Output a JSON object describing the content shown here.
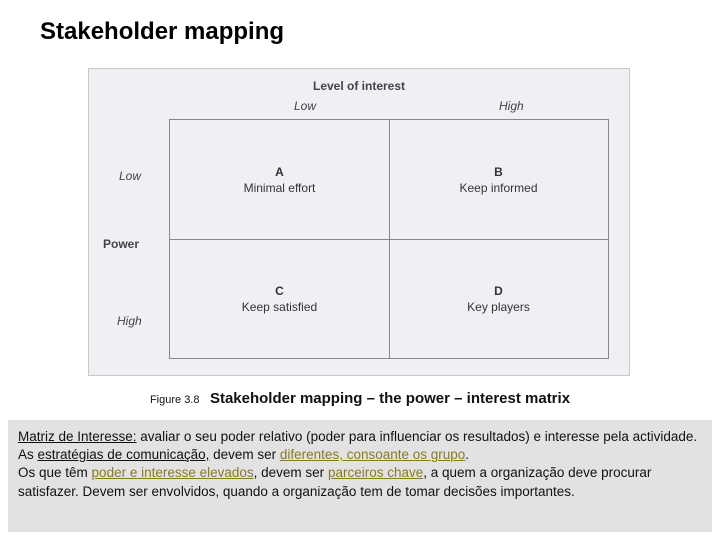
{
  "title": "Stakeholder mapping",
  "figure": {
    "top_axis_title": "Level of interest",
    "left_axis_title": "Power",
    "col_labels": {
      "low": "Low",
      "high": "High"
    },
    "row_labels": {
      "low": "Low",
      "high": "High"
    },
    "quadrants": {
      "A": {
        "letter": "A",
        "label": "Minimal effort"
      },
      "B": {
        "letter": "B",
        "label": "Keep informed"
      },
      "C": {
        "letter": "C",
        "label": "Keep satisfied"
      },
      "D": {
        "letter": "D",
        "label": "Key players"
      }
    },
    "background_color": "#eef0f4",
    "border_color": "#888888",
    "label_color": "#444444"
  },
  "caption": {
    "figure_no": "Figure 3.8",
    "text": "Stakeholder mapping – the power – interest matrix"
  },
  "body": {
    "l1a": "Matriz de Interesse:",
    "l1b": " avaliar o seu poder relativo (poder para influenciar os resultados) e interesse pela actividade.",
    "l2a": "As ",
    "l2b": "estratégias de comunicação,",
    "l2c": " devem ser ",
    "l2d": "diferentes, consoante os grupo",
    "l2e": ".",
    "l3a": "Os que têm ",
    "l3b": "poder e interesse elevados",
    "l3c": ", devem ser ",
    "l3d": "parceiros chave",
    "l3e": ", a quem a organização deve procurar satisfazer. Devem ser envolvidos, quando a organização tem de tomar decisões importantes."
  },
  "colors": {
    "olive": "#8a7a1f",
    "body_bg": "#e2e2e2",
    "page_bg": "#ffffff",
    "text": "#111111"
  }
}
